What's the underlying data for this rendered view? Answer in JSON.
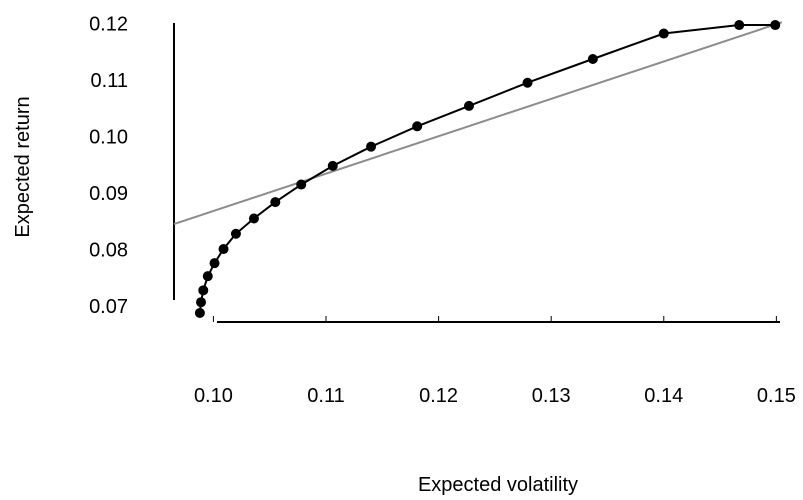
{
  "chart_data": {
    "type": "line",
    "title": "",
    "xlabel": "Expected volatility",
    "ylabel": "Expected return",
    "xlim": [
      0.0965,
      0.1505
    ],
    "ylim": [
      0.0672,
      0.1213
    ],
    "x_ticks": [
      "0.10",
      "0.11",
      "0.12",
      "0.13",
      "0.14",
      "0.15"
    ],
    "x_tick_values": [
      0.1,
      0.11,
      0.12,
      0.13,
      0.14,
      0.15
    ],
    "y_ticks": [
      "0.07",
      "0.08",
      "0.09",
      "0.10",
      "0.11",
      "0.12"
    ],
    "y_tick_values": [
      0.07,
      0.08,
      0.09,
      0.1,
      0.11,
      0.12
    ],
    "grid": false,
    "series": [
      {
        "style": "line-with-markers",
        "color": "#000000",
        "x": [
          0.0988,
          0.0989,
          0.0991,
          0.0995,
          0.1001,
          0.1009,
          0.102,
          0.1036,
          0.1055,
          0.1078,
          0.1106,
          0.114,
          0.1181,
          0.1227,
          0.1279,
          0.1337,
          0.14,
          0.1467,
          0.1499
        ],
        "y": [
          0.0688,
          0.0707,
          0.0728,
          0.0753,
          0.0776,
          0.0801,
          0.0828,
          0.0855,
          0.0884,
          0.0915,
          0.0948,
          0.0982,
          0.1018,
          0.1054,
          0.1095,
          0.1137,
          0.1182,
          0.1197,
          0.1197
        ]
      },
      {
        "style": "line",
        "color": "#8c8c8c",
        "x": [
          0.0965,
          0.1505
        ],
        "y": [
          0.0845,
          0.1202
        ]
      }
    ]
  }
}
